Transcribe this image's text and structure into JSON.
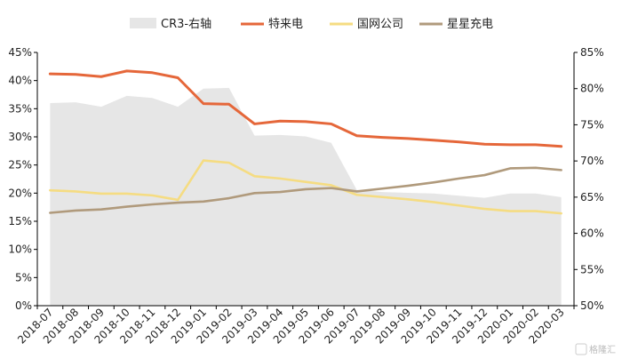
{
  "chart_data": {
    "type": "line",
    "categories": [
      "2018-07",
      "2018-08",
      "2018-09",
      "2018-10",
      "2018-11",
      "2018-12",
      "2019-01",
      "2019-02",
      "2019-03",
      "2019-04",
      "2019-05",
      "2019-06",
      "2019-07",
      "2019-08",
      "2019-09",
      "2019-10",
      "2019-11",
      "2019-12",
      "2020-01",
      "2020-02",
      "2020-03"
    ],
    "y_left": {
      "min": 0,
      "max": 45,
      "step": 5,
      "unit": "%"
    },
    "y_right": {
      "min": 50,
      "max": 85,
      "step": 5,
      "unit": "%"
    },
    "series": [
      {
        "name": "CR3-右轴",
        "type": "area",
        "axis": "right",
        "color": "#e6e6e6",
        "values": [
          78,
          78.1,
          77.5,
          79,
          78.7,
          77.5,
          80,
          80.1,
          73.5,
          73.6,
          73.4,
          72.5,
          66,
          65.7,
          65.6,
          65.5,
          65.2,
          64.9,
          65.5,
          65.5,
          65
        ]
      },
      {
        "name": "特来电",
        "type": "line",
        "axis": "left",
        "color": "#e5673a",
        "values": [
          41.2,
          41.1,
          40.7,
          41.7,
          41.4,
          40.5,
          35.9,
          35.8,
          32.3,
          32.8,
          32.7,
          32.3,
          30.2,
          29.9,
          29.7,
          29.4,
          29.1,
          28.7,
          28.6,
          28.6,
          28.3
        ]
      },
      {
        "name": "国网公司",
        "type": "line",
        "axis": "left",
        "color": "#f5dc82",
        "values": [
          20.5,
          20.3,
          19.9,
          19.9,
          19.6,
          18.8,
          25.8,
          25.4,
          23.0,
          22.6,
          22.0,
          21.4,
          19.7,
          19.3,
          18.9,
          18.4,
          17.8,
          17.2,
          16.8,
          16.8,
          16.4
        ]
      },
      {
        "name": "星星充电",
        "type": "line",
        "axis": "left",
        "color": "#b09a7c",
        "values": [
          16.5,
          16.9,
          17.1,
          17.6,
          18.0,
          18.3,
          18.5,
          19.1,
          20.0,
          20.2,
          20.7,
          20.9,
          20.3,
          20.8,
          21.3,
          21.9,
          22.6,
          23.2,
          24.4,
          24.5,
          24.1
        ]
      }
    ]
  },
  "watermark": "格隆汇"
}
